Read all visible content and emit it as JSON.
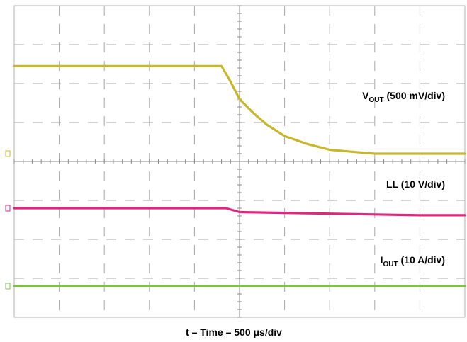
{
  "chart_data": {
    "type": "line",
    "xlabel": "t – Time – 500 μs/div",
    "grid": {
      "divisions_x": 10,
      "divisions_y": 8,
      "style": "dashed"
    },
    "x_unit": "div",
    "xlim": [
      0,
      10
    ],
    "series": [
      {
        "key": "vout",
        "name_main": "V",
        "name_sub": "OUT",
        "name_rest": "(500 mV/div)",
        "color": "#c8b72a",
        "x": [
          0,
          1,
          2,
          3,
          4,
          4.6,
          4.8,
          5.0,
          5.3,
          5.6,
          6.0,
          6.5,
          7.0,
          7.5,
          8,
          9,
          10
        ],
        "y": [
          6.45,
          6.45,
          6.45,
          6.45,
          6.45,
          6.45,
          6.05,
          5.6,
          5.25,
          4.95,
          4.65,
          4.45,
          4.3,
          4.25,
          4.2,
          4.2,
          4.2
        ],
        "marker_y": 4.2
      },
      {
        "key": "ll",
        "name_main": "LL (10 V/div)",
        "name_sub": "",
        "name_rest": "",
        "color": "#e0277f",
        "x": [
          0,
          2,
          4,
          4.7,
          5.0,
          6,
          7,
          8,
          9,
          10
        ],
        "y": [
          2.8,
          2.8,
          2.8,
          2.8,
          2.7,
          2.68,
          2.66,
          2.64,
          2.62,
          2.62
        ],
        "marker_y": 2.8
      },
      {
        "key": "iout",
        "name_main": "I",
        "name_sub": "OUT",
        "name_rest": "(10 A/div)",
        "color": "#7dc242",
        "x": [
          0,
          2,
          4,
          6,
          8,
          10
        ],
        "y": [
          0.8,
          0.8,
          0.8,
          0.8,
          0.8,
          0.8
        ],
        "marker_y": 0.8
      }
    ]
  }
}
